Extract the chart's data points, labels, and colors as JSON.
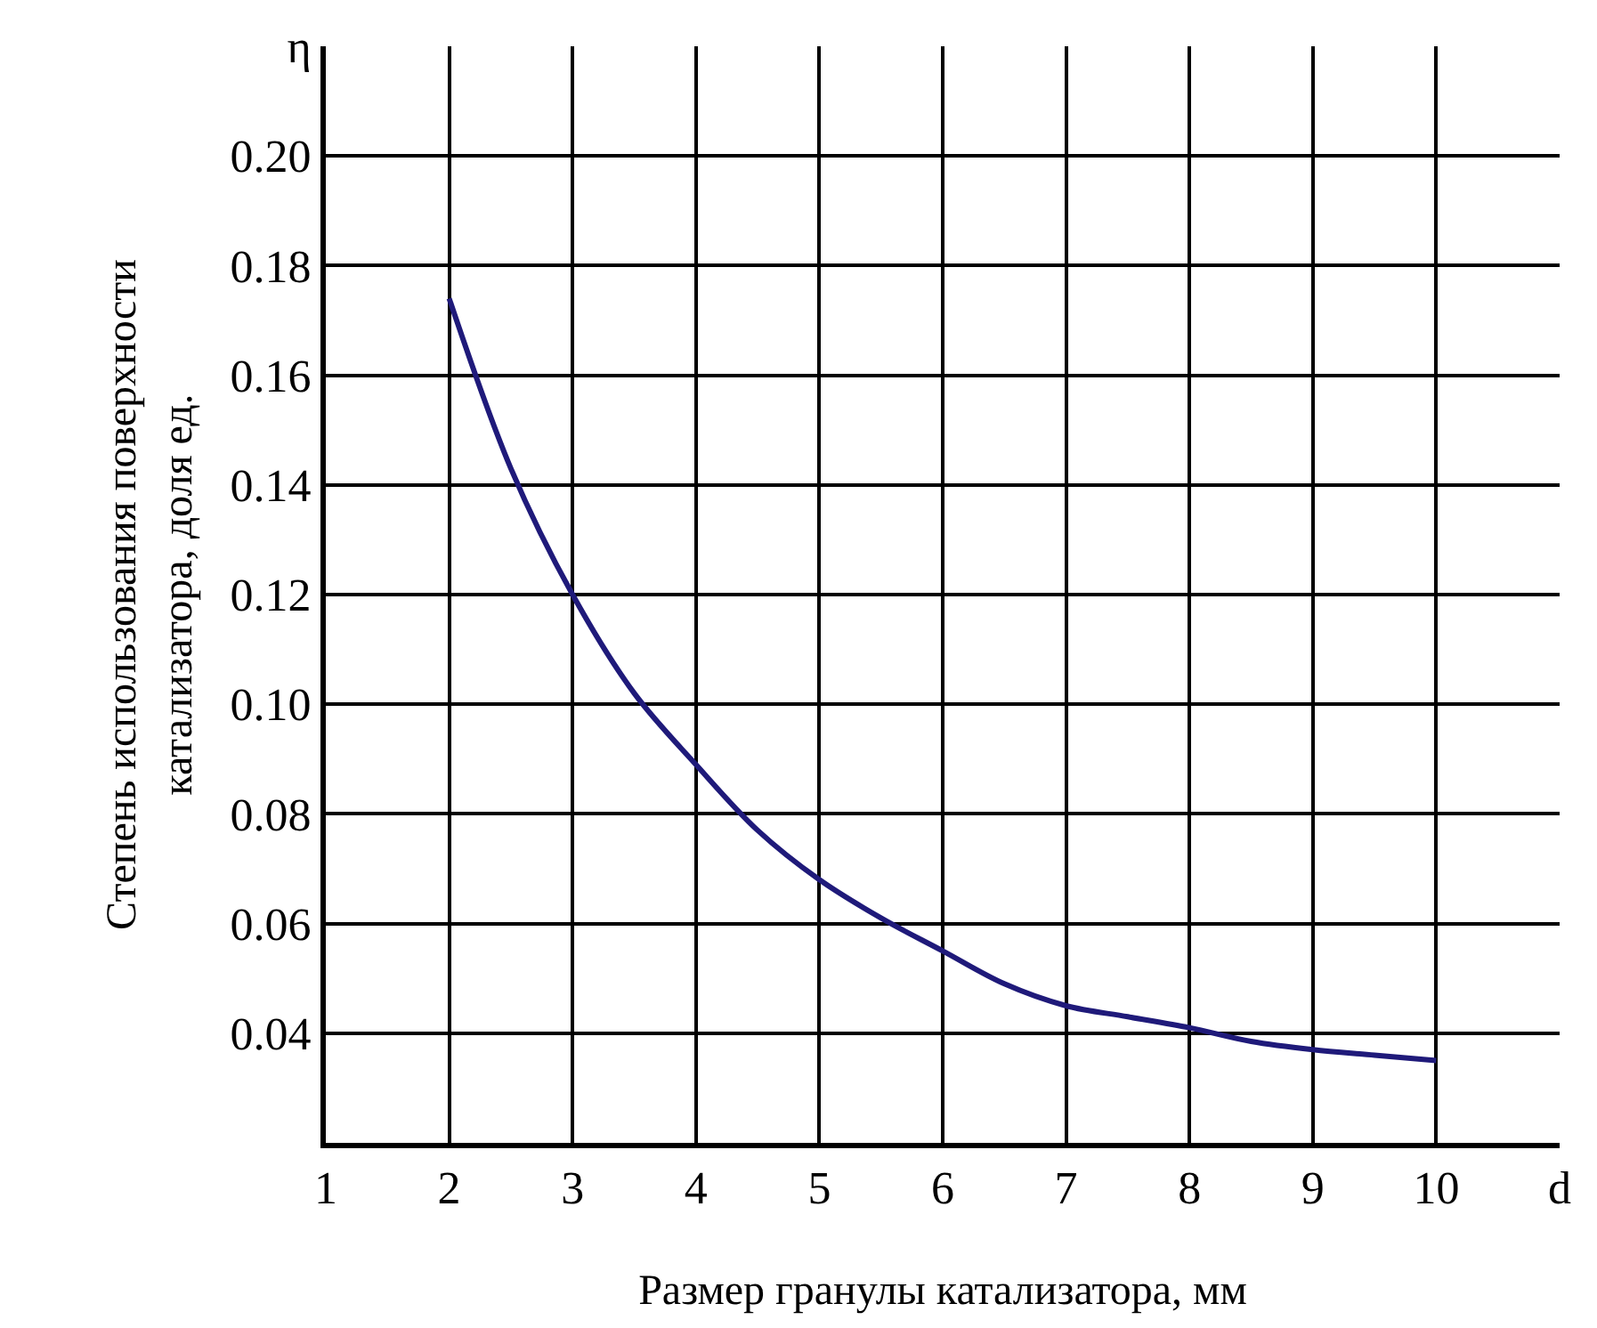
{
  "chart_data": {
    "type": "line",
    "xlabel": "Размер гранулы катализатора, мм",
    "ylabel": "Степень использования поверхности\nкатализатора, доля ед.",
    "x": [
      2,
      2.5,
      3,
      3.5,
      4,
      4.5,
      5,
      5.5,
      6,
      6.5,
      7,
      7.5,
      8,
      8.5,
      9,
      9.5,
      10
    ],
    "series": [
      {
        "color": "#1f1a7a",
        "values": [
          0.174,
          0.143,
          0.12,
          0.102,
          0.089,
          0.077,
          0.068,
          0.061,
          0.055,
          0.049,
          0.045,
          0.043,
          0.041,
          0.0385,
          0.037,
          0.036,
          0.035
        ]
      }
    ],
    "xlim": [
      1,
      11
    ],
    "ylim": [
      0.02,
      0.22
    ],
    "xticks": [
      1,
      2,
      3,
      4,
      5,
      6,
      7,
      8,
      9,
      10,
      {
        "value": 11,
        "label": "d"
      }
    ],
    "yticks": [
      {
        "value": 0.02,
        "label": null
      },
      {
        "value": 0.04,
        "label": "0.04"
      },
      {
        "value": 0.06,
        "label": "0.06"
      },
      {
        "value": 0.08,
        "label": "0.08"
      },
      {
        "value": 0.1,
        "label": "0.10"
      },
      {
        "value": 0.12,
        "label": "0.12"
      },
      {
        "value": 0.14,
        "label": "0.14"
      },
      {
        "value": 0.16,
        "label": "0.16"
      },
      {
        "value": 0.18,
        "label": "0.18"
      },
      {
        "value": 0.2,
        "label": "0.20"
      },
      {
        "value": 0.22,
        "label": "η"
      }
    ],
    "grid": true,
    "marker": "none",
    "line_style": "solid"
  }
}
